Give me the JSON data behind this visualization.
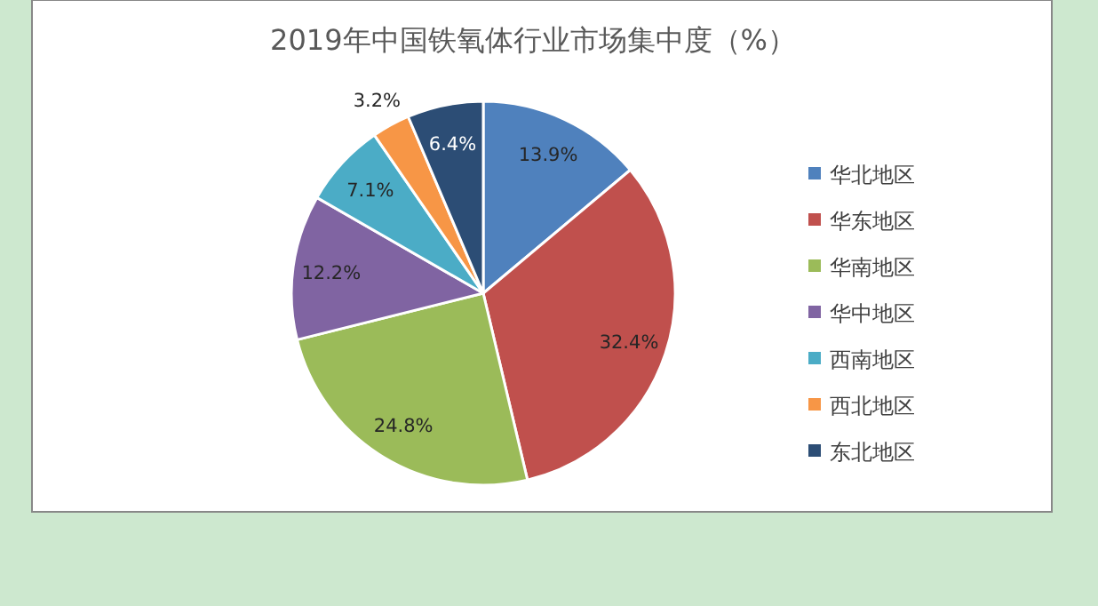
{
  "chart_data": {
    "type": "pie",
    "title": "2019年中国铁氧体行业市场集中度（%）",
    "categories": [
      "华北地区",
      "华东地区",
      "华南地区",
      "华中地区",
      "西南地区",
      "西北地区",
      "东北地区"
    ],
    "values": [
      13.9,
      32.4,
      24.8,
      12.2,
      7.1,
      3.2,
      6.4
    ],
    "colors": [
      "#4f81bd",
      "#c0504d",
      "#9bbb59",
      "#8064a2",
      "#4bacc6",
      "#f79646",
      "#2c4d75"
    ],
    "value_labels": [
      "13.9%",
      "32.4%",
      "24.8%",
      "12.2%",
      "7.1%",
      "3.2%",
      "6.4%"
    ],
    "legend": "right"
  }
}
